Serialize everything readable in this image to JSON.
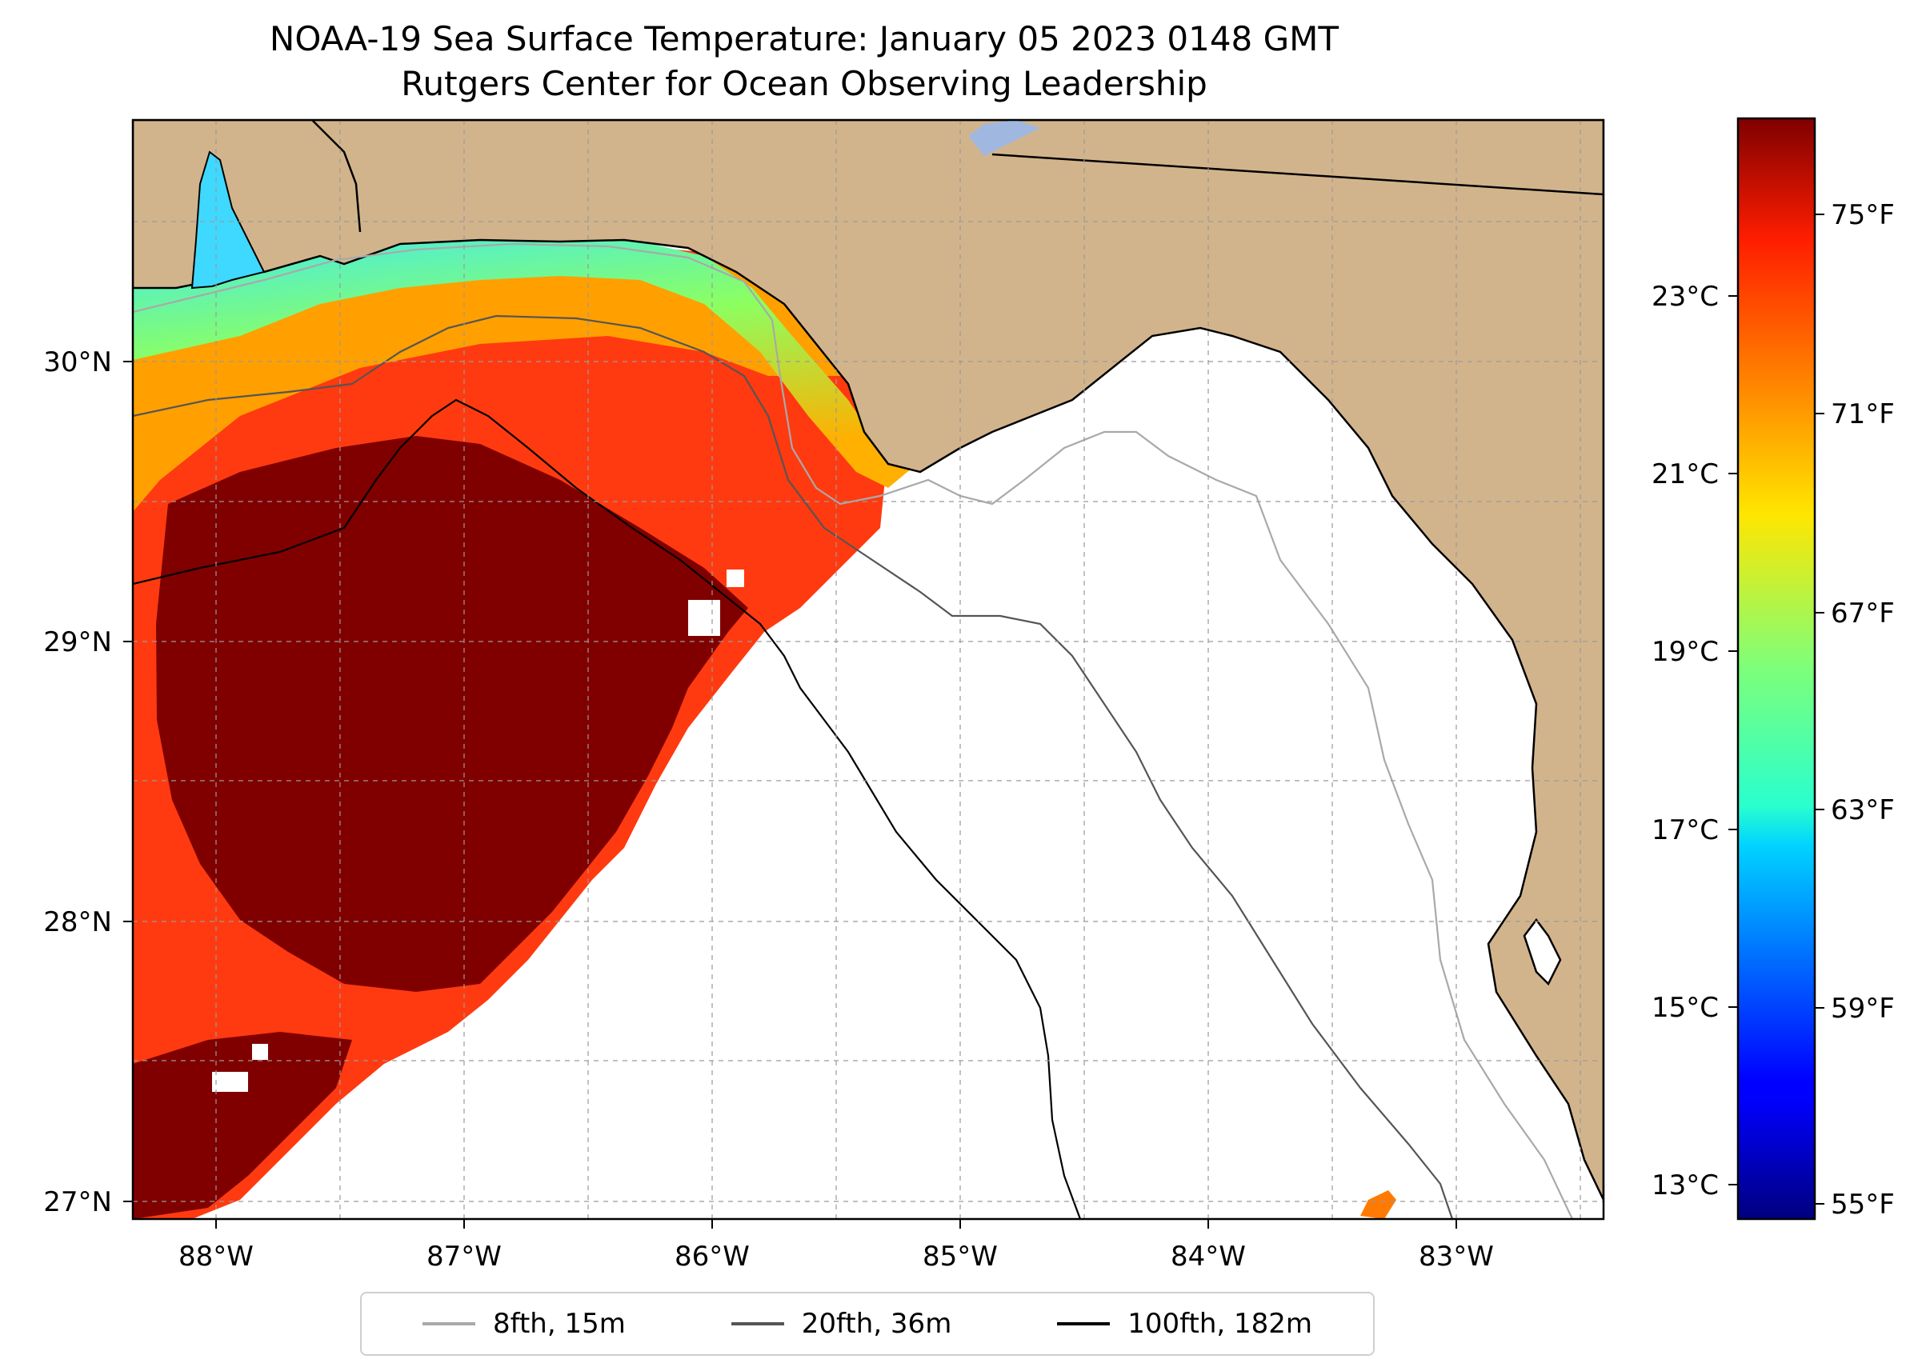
{
  "title": "NOAA-19 Sea Surface Temperature: January 05 2023 0148 GMT",
  "subtitle": "Rutgers Center for Ocean Observing Leadership",
  "map": {
    "lon_range": [
      -88.33,
      -82.4
    ],
    "lat_range": [
      26.93,
      30.87
    ],
    "lon_ticks": [
      {
        "value": -88,
        "label": "88°W"
      },
      {
        "value": -87,
        "label": "87°W"
      },
      {
        "value": -86,
        "label": "86°W"
      },
      {
        "value": -85,
        "label": "85°W"
      },
      {
        "value": -84,
        "label": "84°W"
      },
      {
        "value": -83,
        "label": "83°W"
      }
    ],
    "lat_ticks": [
      {
        "value": 27,
        "label": "27°N"
      },
      {
        "value": 28,
        "label": "28°N"
      },
      {
        "value": 29,
        "label": "29°N"
      },
      {
        "value": 30,
        "label": "30°N"
      }
    ],
    "land_color": "#d2b48c",
    "gridlines": "dashed"
  },
  "colorbar": {
    "colormap": "jet",
    "fahrenheit_ticks": [
      "75°F",
      "71°F",
      "67°F",
      "63°F",
      "59°F",
      "55°F"
    ],
    "celsius_ticks": [
      "23°C",
      "21°C",
      "19°C",
      "17°C",
      "15°C",
      "13°C"
    ]
  },
  "legend": {
    "items": [
      {
        "label": "8fth, 15m",
        "color": "#a9a9a9"
      },
      {
        "label": "20fth, 36m",
        "color": "#555555"
      },
      {
        "label": "100fth, 182m",
        "color": "#000000"
      }
    ]
  }
}
